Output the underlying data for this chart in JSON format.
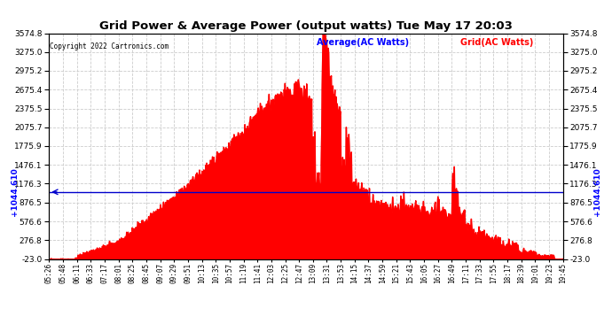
{
  "title": "Grid Power & Average Power (output watts) Tue May 17 20:03",
  "copyright": "Copyright 2022 Cartronics.com",
  "legend_average": "Average(AC Watts)",
  "legend_grid": "Grid(AC Watts)",
  "average_value": 1044.61,
  "yticks": [
    -23.0,
    276.8,
    576.6,
    876.5,
    1176.3,
    1476.1,
    1775.9,
    2075.7,
    2375.5,
    2675.4,
    2975.2,
    3275.0,
    3574.8
  ],
  "ymin": -23.0,
  "ymax": 3574.8,
  "xtick_labels": [
    "05:26",
    "05:48",
    "06:11",
    "06:33",
    "07:17",
    "08:01",
    "08:25",
    "08:45",
    "09:07",
    "09:29",
    "09:51",
    "10:13",
    "10:35",
    "10:57",
    "11:19",
    "11:41",
    "12:03",
    "12:25",
    "12:47",
    "13:09",
    "13:31",
    "13:53",
    "14:15",
    "14:37",
    "14:59",
    "15:21",
    "15:43",
    "16:05",
    "16:27",
    "16:49",
    "17:11",
    "17:33",
    "17:55",
    "18:17",
    "18:39",
    "19:01",
    "19:23",
    "19:45"
  ],
  "bg_color": "#ffffff",
  "fill_color": "#ff0000",
  "line_color": "#0000cc",
  "grid_color": "#cccccc",
  "title_color": "#000000"
}
